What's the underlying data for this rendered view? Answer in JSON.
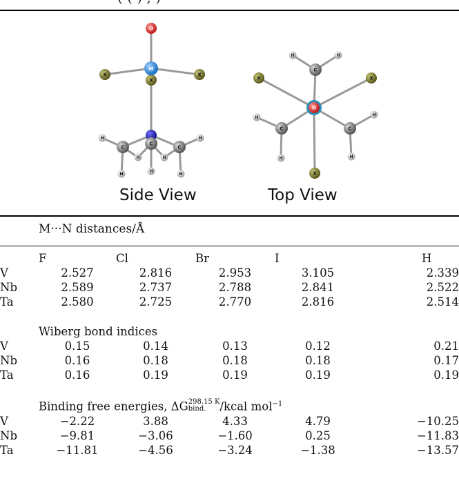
{
  "top_fragment": "( (  ) ,        )",
  "figure": {
    "side_view_label": "Side View",
    "top_view_label": "Top View",
    "atom_labels": {
      "metal": "M",
      "oxygen": "O",
      "halide": "X",
      "carbon": "C",
      "hydrogen": "H",
      "center": "O"
    },
    "colors": {
      "metal": "#2f8fd8",
      "oxygen": "#e03a3a",
      "halide": "#7a7a2a",
      "nitrogen": "#2020c0",
      "carbon": "#8a8a8a",
      "hydrogen": "#e8e8e8",
      "bond": "#9a9a9a"
    }
  },
  "table": {
    "header_title": "M···N distances/Å",
    "columns": [
      "F",
      "Cl",
      "Br",
      "I",
      "H"
    ],
    "sections": [
      {
        "title": "",
        "rows": [
          {
            "metal": "V",
            "values": [
              "2.527",
              "2.816",
              "2.953",
              "3.105",
              "2.339"
            ]
          },
          {
            "metal": "Nb",
            "values": [
              "2.589",
              "2.737",
              "2.788",
              "2.841",
              "2.522"
            ]
          },
          {
            "metal": "Ta",
            "values": [
              "2.580",
              "2.725",
              "2.770",
              "2.816",
              "2.514"
            ]
          }
        ]
      },
      {
        "title": "Wiberg bond indices",
        "rows": [
          {
            "metal": "V",
            "values": [
              "0.15",
              "0.14",
              "0.13",
              "0.12",
              "0.21"
            ]
          },
          {
            "metal": "Nb",
            "values": [
              "0.16",
              "0.18",
              "0.18",
              "0.18",
              "0.17"
            ]
          },
          {
            "metal": "Ta",
            "values": [
              "0.16",
              "0.19",
              "0.19",
              "0.19",
              "0.19"
            ]
          }
        ]
      },
      {
        "title_prefix": "Binding free energies, ΔG",
        "title_sup": "298.15 K",
        "title_sub": "bind.",
        "title_suffix": "/kcal mol",
        "title_exp": "−1",
        "rows": [
          {
            "metal": "V",
            "values": [
              "−2.22",
              "3.88",
              "4.33",
              "4.79",
              "−10.25"
            ]
          },
          {
            "metal": "Nb",
            "values": [
              "−9.81",
              "−3.06",
              "−1.60",
              "0.25",
              "−11.83"
            ]
          },
          {
            "metal": "Ta",
            "values": [
              "−11.81",
              "−4.56",
              "−3.24",
              "−1.38",
              "−13.57"
            ]
          }
        ]
      }
    ]
  }
}
